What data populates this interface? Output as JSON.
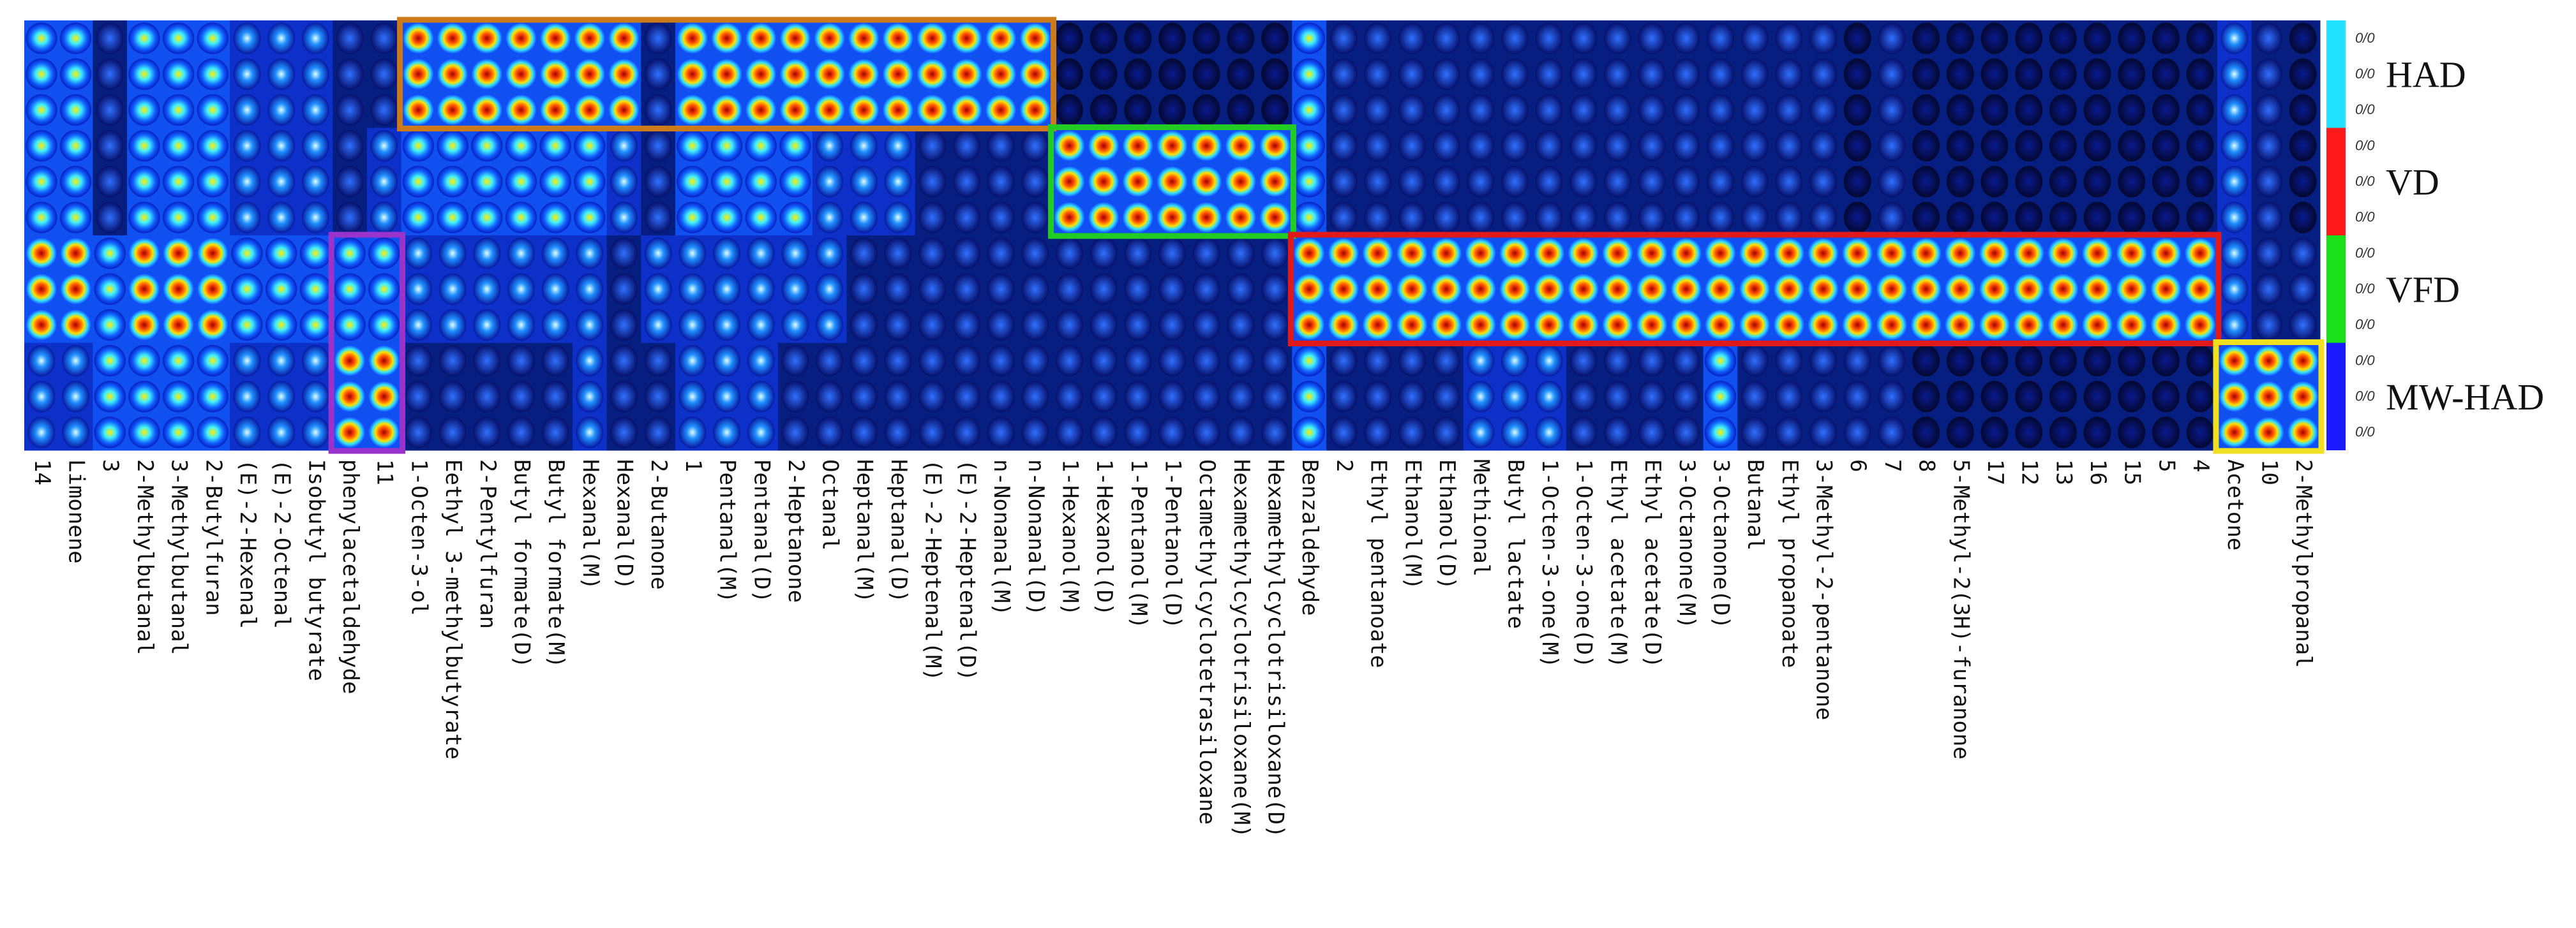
{
  "chart_data": {
    "type": "heatmap",
    "title": "",
    "groups": [
      {
        "label": "HAD",
        "color": "#22e0ff"
      },
      {
        "label": "VD",
        "color": "#ff1a1a"
      },
      {
        "label": "VFD",
        "color": "#19e019"
      },
      {
        "label": "MW-HAD",
        "color": "#1a1aff"
      }
    ],
    "scale_tick_label": "0/0",
    "replicates_per_group": 3,
    "columns": [
      "14",
      "Limonene",
      "3",
      "2-Methylbutanal",
      "3-Methylbutanal",
      "2-Butylfuran",
      "(E)-2-Hexenal",
      "(E)-2-Octenal",
      "Isobutyl butyrate",
      "phenylacetaldehyde",
      "11",
      "1-Octen-3-ol",
      "Eethyl 3-methylbutyrate",
      "2-Pentylfuran",
      "Butyl formate(D)",
      "Butyl formate(M)",
      "Hexanal(M)",
      "Hexanal(D)",
      "2-Butanone",
      "1",
      "Pentanal(M)",
      "Pentanal(D)",
      "2-Heptanone",
      "Octanal",
      "Heptanal(M)",
      "Heptanal(D)",
      "(E)-2-Heptenal(M)",
      "(E)-2-Heptenal(D)",
      "n-Nonanal(M)",
      "n-Nonanal(D)",
      "1-Hexanol(M)",
      "1-Hexanol(D)",
      "1-Pentanol(M)",
      "1-Pentanol(D)",
      "Octamethylcyclotetrasiloxane",
      "Hexamethylcyclotrisiloxane(M)",
      "Hexamethylcyclotrisiloxane(D)",
      "Benzaldehyde",
      "2",
      "Ethyl pentanoate",
      "Ethanol(M)",
      "Ethanol(D)",
      "Methional",
      "Butyl lactate",
      "1-Octen-3-one(M)",
      "1-Octen-3-one(D)",
      "Ethyl acetate(M)",
      "Ethyl acetate(D)",
      "3-Octanone(M)",
      "3-Octanone(D)",
      "Butanal",
      "Ethyl propanoate",
      "3-Methyl-2-pentanone",
      "6",
      "7",
      "8",
      "5-Methyl-2(3H)-furanone",
      "17",
      "12",
      "13",
      "16",
      "15",
      "5",
      "4",
      "Acetone",
      "10",
      "2-Methylpropanal"
    ],
    "intensity": [
      [
        3,
        3,
        1,
        3,
        3,
        3,
        2,
        2,
        2,
        1,
        1,
        4,
        4,
        4,
        4,
        4,
        4,
        4,
        1,
        4,
        4,
        4,
        4,
        4,
        4,
        4,
        4,
        4,
        4,
        4,
        0,
        0,
        0,
        0,
        0,
        0,
        0,
        3,
        1,
        1,
        1,
        1,
        1,
        1,
        1,
        1,
        1,
        1,
        1,
        1,
        1,
        1,
        1,
        0,
        1,
        0,
        0,
        0,
        0,
        0,
        0,
        0,
        0,
        0,
        2,
        1,
        0
      ],
      [
        3,
        3,
        1,
        3,
        3,
        3,
        2,
        2,
        2,
        1,
        2,
        3,
        3,
        3,
        3,
        3,
        3,
        2,
        1,
        3,
        3,
        3,
        3,
        2,
        2,
        2,
        1,
        1,
        1,
        1,
        4,
        4,
        4,
        4,
        4,
        4,
        4,
        3,
        1,
        1,
        1,
        1,
        1,
        1,
        1,
        1,
        1,
        1,
        1,
        1,
        1,
        1,
        1,
        0,
        1,
        0,
        0,
        0,
        0,
        0,
        0,
        0,
        0,
        0,
        2,
        1,
        0
      ],
      [
        4,
        4,
        3,
        4,
        4,
        4,
        3,
        3,
        3,
        3,
        3,
        2,
        2,
        2,
        2,
        2,
        2,
        1,
        2,
        2,
        2,
        2,
        2,
        2,
        1,
        1,
        1,
        1,
        1,
        1,
        1,
        1,
        1,
        1,
        1,
        1,
        1,
        4,
        4,
        4,
        4,
        4,
        4,
        4,
        4,
        4,
        4,
        4,
        4,
        4,
        4,
        4,
        4,
        4,
        4,
        4,
        4,
        4,
        4,
        4,
        4,
        4,
        4,
        4,
        2,
        1,
        1
      ],
      [
        2,
        2,
        3,
        3,
        3,
        3,
        2,
        2,
        2,
        4,
        4,
        1,
        1,
        1,
        1,
        1,
        2,
        1,
        1,
        2,
        2,
        2,
        1,
        1,
        1,
        1,
        1,
        1,
        1,
        1,
        1,
        1,
        1,
        1,
        1,
        1,
        1,
        3,
        1,
        1,
        1,
        1,
        2,
        2,
        2,
        1,
        1,
        1,
        1,
        3,
        1,
        1,
        1,
        1,
        1,
        0,
        0,
        0,
        0,
        0,
        0,
        0,
        0,
        0,
        4,
        4,
        4
      ]
    ],
    "highlight_boxes": [
      {
        "name": "had-box",
        "color": "#cc7a1a",
        "group": "HAD",
        "rows": [
          0,
          2
        ],
        "from_column": "1-Octen-3-ol",
        "to_column": "n-Nonanal(D)"
      },
      {
        "name": "vd-box",
        "color": "#22cc22",
        "group": "VD",
        "rows": [
          3,
          5
        ],
        "from_column": "1-Hexanol(M)",
        "to_column": "Hexamethylcyclotrisiloxane(D)"
      },
      {
        "name": "vfd-box",
        "color": "#e01a1a",
        "group": "VFD",
        "rows": [
          6,
          8
        ],
        "from_column": "Benzaldehyde",
        "to_column": "4"
      },
      {
        "name": "phenyl-box",
        "color": "#9933cc",
        "group": "VFD+MW-HAD",
        "rows": [
          6,
          11
        ],
        "from_column": "phenylacetaldehyde",
        "to_column": "11"
      },
      {
        "name": "mw-box",
        "color": "#f0e020",
        "group": "MW-HAD",
        "rows": [
          9,
          11
        ],
        "from_column": "Acetone",
        "to_column": "2-Methylpropanal"
      }
    ]
  }
}
